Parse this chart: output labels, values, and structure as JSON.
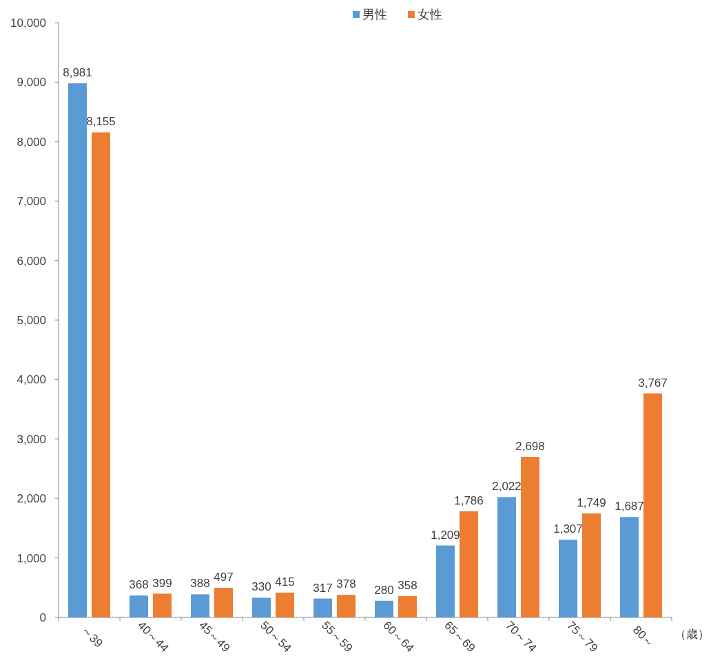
{
  "chart_data": {
    "type": "bar",
    "categories": [
      "～39",
      "40～44",
      "45～49",
      "50～54",
      "55～59",
      "60～64",
      "65～69",
      "70～74",
      "75～79",
      "80～"
    ],
    "series": [
      {
        "name": "男性",
        "color": "#5b9bd5",
        "values": [
          8981,
          368,
          388,
          330,
          317,
          280,
          1209,
          2022,
          1307,
          1687
        ],
        "value_labels": [
          "8,981",
          "368",
          "388",
          "330",
          "317",
          "280",
          "1,209",
          "2,022",
          "1,307",
          "1,687"
        ]
      },
      {
        "name": "女性",
        "color": "#ed7d31",
        "values": [
          8155,
          399,
          497,
          415,
          378,
          358,
          1786,
          2698,
          1749,
          3767
        ],
        "value_labels": [
          "8,155",
          "399",
          "497",
          "415",
          "378",
          "358",
          "1,786",
          "2,698",
          "1,749",
          "3,767"
        ]
      }
    ],
    "xlabel": "（歳）",
    "ylim": [
      0,
      10000
    ],
    "yticks": [
      {
        "value": 0,
        "label": "0"
      },
      {
        "value": 1000,
        "label": "1,000"
      },
      {
        "value": 2000,
        "label": "2,000"
      },
      {
        "value": 3000,
        "label": "3,000"
      },
      {
        "value": 4000,
        "label": "4,000"
      },
      {
        "value": 5000,
        "label": "5,000"
      },
      {
        "value": 6000,
        "label": "6,000"
      },
      {
        "value": 7000,
        "label": "7,000"
      },
      {
        "value": 8000,
        "label": "8,000"
      },
      {
        "value": 9000,
        "label": "9,000"
      },
      {
        "value": 10000,
        "label": "10,000"
      }
    ],
    "legend": "top",
    "grid": false
  }
}
